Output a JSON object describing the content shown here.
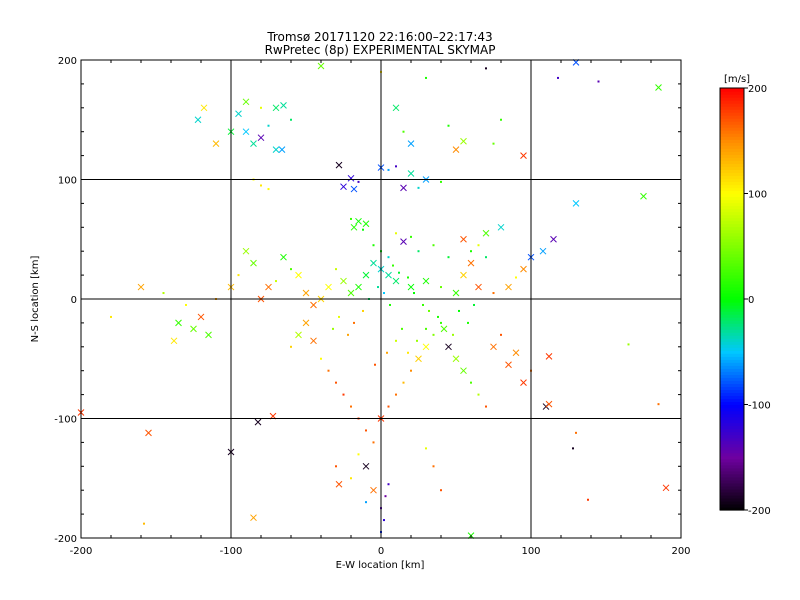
{
  "chart_data": {
    "type": "scatter",
    "title": "Tromsø 20171120 22:16:00–22:17:43",
    "subtitle": "RwPretec (8p) EXPERIMENTAL SKYMAP",
    "xlabel": "E-W location [km]",
    "ylabel": "N-S location [km]",
    "xlim": [
      -200,
      200
    ],
    "ylim": [
      -200,
      200
    ],
    "x_ticks": [
      "-200",
      "-100",
      "0",
      "100",
      "200"
    ],
    "y_ticks": [
      "-200",
      "-100",
      "0",
      "100",
      "200"
    ],
    "grid": true,
    "colorbar": {
      "label": "[m/s]",
      "range": [
        -200,
        200
      ],
      "ticks": [
        "-200",
        "-100",
        "0",
        "100",
        "200"
      ],
      "placement": "right"
    },
    "markers": [
      "dot",
      "x"
    ],
    "points": [
      {
        "x": -10,
        "y": 63,
        "v": 10,
        "m": "x"
      },
      {
        "x": -15,
        "y": 65,
        "v": 5,
        "m": "x"
      },
      {
        "x": -18,
        "y": 60,
        "v": 15,
        "m": "x"
      },
      {
        "x": -12,
        "y": 58,
        "v": 0,
        "m": "dot"
      },
      {
        "x": -20,
        "y": 67,
        "v": 20,
        "m": "dot"
      },
      {
        "x": -95,
        "y": 155,
        "v": -40,
        "m": "x"
      },
      {
        "x": -90,
        "y": 140,
        "v": -50,
        "m": "x"
      },
      {
        "x": -85,
        "y": 130,
        "v": -30,
        "m": "x"
      },
      {
        "x": -80,
        "y": 135,
        "v": -140,
        "m": "x"
      },
      {
        "x": -75,
        "y": 145,
        "v": -40,
        "m": "dot"
      },
      {
        "x": -70,
        "y": 160,
        "v": -20,
        "m": "x"
      },
      {
        "x": -65,
        "y": 162,
        "v": -30,
        "m": "x"
      },
      {
        "x": -60,
        "y": 150,
        "v": -20,
        "m": "dot"
      },
      {
        "x": -100,
        "y": 140,
        "v": -10,
        "m": "x"
      },
      {
        "x": -110,
        "y": 130,
        "v": 130,
        "m": "x"
      },
      {
        "x": -122,
        "y": 150,
        "v": -40,
        "m": "x"
      },
      {
        "x": -118,
        "y": 160,
        "v": 110,
        "m": "x"
      },
      {
        "x": -90,
        "y": 165,
        "v": 40,
        "m": "x"
      },
      {
        "x": -80,
        "y": 160,
        "v": 90,
        "m": "dot"
      },
      {
        "x": -85,
        "y": 100,
        "v": 100,
        "m": "dot"
      },
      {
        "x": -80,
        "y": 95,
        "v": 110,
        "m": "dot"
      },
      {
        "x": -75,
        "y": 92,
        "v": 100,
        "m": "dot"
      },
      {
        "x": -70,
        "y": 125,
        "v": -40,
        "m": "x"
      },
      {
        "x": -66,
        "y": 125,
        "v": -60,
        "m": "x"
      },
      {
        "x": -28,
        "y": 112,
        "v": -190,
        "m": "x"
      },
      {
        "x": -25,
        "y": 94,
        "v": -120,
        "m": "x"
      },
      {
        "x": -20,
        "y": 101,
        "v": -120,
        "m": "x"
      },
      {
        "x": -15,
        "y": 98,
        "v": -130,
        "m": "dot"
      },
      {
        "x": -18,
        "y": 92,
        "v": -80,
        "m": "x"
      },
      {
        "x": 0,
        "y": 110,
        "v": -80,
        "m": "x"
      },
      {
        "x": 5,
        "y": 108,
        "v": -60,
        "m": "dot"
      },
      {
        "x": 10,
        "y": 111,
        "v": -130,
        "m": "dot"
      },
      {
        "x": 15,
        "y": 93,
        "v": -140,
        "m": "x"
      },
      {
        "x": 20,
        "y": 105,
        "v": -30,
        "m": "x"
      },
      {
        "x": 30,
        "y": 100,
        "v": -60,
        "m": "x"
      },
      {
        "x": 25,
        "y": 93,
        "v": -40,
        "m": "dot"
      },
      {
        "x": 40,
        "y": 98,
        "v": 20,
        "m": "dot"
      },
      {
        "x": 20,
        "y": 130,
        "v": -60,
        "m": "x"
      },
      {
        "x": 10,
        "y": 160,
        "v": -20,
        "m": "x"
      },
      {
        "x": 15,
        "y": 140,
        "v": 30,
        "m": "dot"
      },
      {
        "x": 0,
        "y": 190,
        "v": 110,
        "m": "dot"
      },
      {
        "x": -40,
        "y": 195,
        "v": 40,
        "m": "x"
      },
      {
        "x": 50,
        "y": 125,
        "v": 150,
        "m": "x"
      },
      {
        "x": 55,
        "y": 132,
        "v": 60,
        "m": "x"
      },
      {
        "x": 30,
        "y": 185,
        "v": 10,
        "m": "dot"
      },
      {
        "x": 45,
        "y": 145,
        "v": 10,
        "m": "dot"
      },
      {
        "x": 75,
        "y": 130,
        "v": 40,
        "m": "dot"
      },
      {
        "x": 80,
        "y": 150,
        "v": 20,
        "m": "dot"
      },
      {
        "x": 95,
        "y": 120,
        "v": 180,
        "m": "x"
      },
      {
        "x": 70,
        "y": 193,
        "v": -190,
        "m": "dot"
      },
      {
        "x": 118,
        "y": 185,
        "v": -130,
        "m": "dot"
      },
      {
        "x": 130,
        "y": 198,
        "v": -80,
        "m": "x"
      },
      {
        "x": 145,
        "y": 182,
        "v": -140,
        "m": "dot"
      },
      {
        "x": 185,
        "y": 177,
        "v": 20,
        "m": "x"
      },
      {
        "x": 175,
        "y": 86,
        "v": 20,
        "m": "x"
      },
      {
        "x": 130,
        "y": 80,
        "v": -50,
        "m": "x"
      },
      {
        "x": 115,
        "y": 50,
        "v": -140,
        "m": "x"
      },
      {
        "x": 108,
        "y": 40,
        "v": -60,
        "m": "x"
      },
      {
        "x": 100,
        "y": 35,
        "v": -80,
        "m": "x"
      },
      {
        "x": 95,
        "y": 25,
        "v": 150,
        "m": "x"
      },
      {
        "x": 90,
        "y": 18,
        "v": 100,
        "m": "dot"
      },
      {
        "x": 80,
        "y": 60,
        "v": -40,
        "m": "x"
      },
      {
        "x": 70,
        "y": 55,
        "v": 30,
        "m": "x"
      },
      {
        "x": 60,
        "y": 30,
        "v": 160,
        "m": "x"
      },
      {
        "x": 55,
        "y": 20,
        "v": 120,
        "m": "x"
      },
      {
        "x": 65,
        "y": 10,
        "v": 170,
        "m": "x"
      },
      {
        "x": 75,
        "y": 5,
        "v": 160,
        "m": "dot"
      },
      {
        "x": 85,
        "y": 10,
        "v": 140,
        "m": "x"
      },
      {
        "x": 50,
        "y": 5,
        "v": 20,
        "m": "x"
      },
      {
        "x": 40,
        "y": 10,
        "v": 40,
        "m": "dot"
      },
      {
        "x": 30,
        "y": 15,
        "v": 10,
        "m": "x"
      },
      {
        "x": 20,
        "y": 10,
        "v": 0,
        "m": "x"
      },
      {
        "x": 10,
        "y": 15,
        "v": -20,
        "m": "x"
      },
      {
        "x": 5,
        "y": 20,
        "v": -30,
        "m": "x"
      },
      {
        "x": 0,
        "y": 25,
        "v": -40,
        "m": "x"
      },
      {
        "x": -5,
        "y": 30,
        "v": -30,
        "m": "x"
      },
      {
        "x": -10,
        "y": 20,
        "v": -10,
        "m": "x"
      },
      {
        "x": -15,
        "y": 10,
        "v": 10,
        "m": "x"
      },
      {
        "x": -20,
        "y": 5,
        "v": 30,
        "m": "x"
      },
      {
        "x": -25,
        "y": 15,
        "v": 60,
        "m": "x"
      },
      {
        "x": -30,
        "y": 25,
        "v": 80,
        "m": "dot"
      },
      {
        "x": -35,
        "y": 10,
        "v": 100,
        "m": "x"
      },
      {
        "x": -40,
        "y": 0,
        "v": 120,
        "m": "x"
      },
      {
        "x": -45,
        "y": -5,
        "v": 160,
        "m": "x"
      },
      {
        "x": -50,
        "y": 5,
        "v": 140,
        "m": "x"
      },
      {
        "x": -55,
        "y": 20,
        "v": 100,
        "m": "x"
      },
      {
        "x": -60,
        "y": 25,
        "v": 30,
        "m": "dot"
      },
      {
        "x": -65,
        "y": 35,
        "v": 10,
        "m": "x"
      },
      {
        "x": -70,
        "y": 15,
        "v": 80,
        "m": "dot"
      },
      {
        "x": -75,
        "y": 10,
        "v": 160,
        "m": "x"
      },
      {
        "x": -80,
        "y": 0,
        "v": 170,
        "m": "x"
      },
      {
        "x": -85,
        "y": 30,
        "v": 40,
        "m": "x"
      },
      {
        "x": -90,
        "y": 40,
        "v": 60,
        "m": "x"
      },
      {
        "x": -95,
        "y": 20,
        "v": 110,
        "m": "dot"
      },
      {
        "x": -100,
        "y": 10,
        "v": 130,
        "m": "x"
      },
      {
        "x": -110,
        "y": 0,
        "v": 140,
        "m": "dot"
      },
      {
        "x": -120,
        "y": -15,
        "v": 170,
        "m": "x"
      },
      {
        "x": -115,
        "y": -30,
        "v": 30,
        "m": "x"
      },
      {
        "x": -125,
        "y": -25,
        "v": 40,
        "m": "x"
      },
      {
        "x": -135,
        "y": -20,
        "v": 20,
        "m": "x"
      },
      {
        "x": -138,
        "y": -35,
        "v": 110,
        "m": "x"
      },
      {
        "x": -130,
        "y": -5,
        "v": 100,
        "m": "dot"
      },
      {
        "x": -160,
        "y": 10,
        "v": 140,
        "m": "x"
      },
      {
        "x": -180,
        "y": -15,
        "v": 110,
        "m": "dot"
      },
      {
        "x": -145,
        "y": 5,
        "v": 70,
        "m": "dot"
      },
      {
        "x": -200,
        "y": -95,
        "v": 180,
        "m": "x"
      },
      {
        "x": -155,
        "y": -112,
        "v": 170,
        "m": "x"
      },
      {
        "x": -100,
        "y": -128,
        "v": -190,
        "m": "x"
      },
      {
        "x": -82,
        "y": -103,
        "v": -190,
        "m": "x"
      },
      {
        "x": -72,
        "y": -98,
        "v": 180,
        "m": "x"
      },
      {
        "x": -60,
        "y": -40,
        "v": 120,
        "m": "dot"
      },
      {
        "x": -55,
        "y": -30,
        "v": 70,
        "m": "x"
      },
      {
        "x": -50,
        "y": -20,
        "v": 140,
        "m": "x"
      },
      {
        "x": -45,
        "y": -35,
        "v": 160,
        "m": "x"
      },
      {
        "x": -40,
        "y": -50,
        "v": 100,
        "m": "dot"
      },
      {
        "x": -35,
        "y": -60,
        "v": 160,
        "m": "dot"
      },
      {
        "x": -30,
        "y": -70,
        "v": 170,
        "m": "dot"
      },
      {
        "x": -25,
        "y": -80,
        "v": 180,
        "m": "dot"
      },
      {
        "x": -20,
        "y": -90,
        "v": 160,
        "m": "dot"
      },
      {
        "x": -15,
        "y": -100,
        "v": 180,
        "m": "dot"
      },
      {
        "x": -10,
        "y": -110,
        "v": 170,
        "m": "dot"
      },
      {
        "x": -5,
        "y": -120,
        "v": 160,
        "m": "dot"
      },
      {
        "x": 0,
        "y": -100,
        "v": 180,
        "m": "x"
      },
      {
        "x": 5,
        "y": -90,
        "v": 170,
        "m": "dot"
      },
      {
        "x": 10,
        "y": -80,
        "v": 160,
        "m": "dot"
      },
      {
        "x": 15,
        "y": -70,
        "v": 130,
        "m": "dot"
      },
      {
        "x": 20,
        "y": -60,
        "v": 150,
        "m": "dot"
      },
      {
        "x": 25,
        "y": -50,
        "v": 120,
        "m": "x"
      },
      {
        "x": 30,
        "y": -40,
        "v": 100,
        "m": "x"
      },
      {
        "x": 35,
        "y": -30,
        "v": 50,
        "m": "dot"
      },
      {
        "x": 40,
        "y": -20,
        "v": 20,
        "m": "dot"
      },
      {
        "x": 45,
        "y": -40,
        "v": -190,
        "m": "x"
      },
      {
        "x": 50,
        "y": -50,
        "v": 60,
        "m": "x"
      },
      {
        "x": 55,
        "y": -60,
        "v": 40,
        "m": "x"
      },
      {
        "x": 60,
        "y": -70,
        "v": 30,
        "m": "dot"
      },
      {
        "x": 65,
        "y": -80,
        "v": 70,
        "m": "dot"
      },
      {
        "x": 70,
        "y": -90,
        "v": 170,
        "m": "dot"
      },
      {
        "x": 75,
        "y": -40,
        "v": 160,
        "m": "x"
      },
      {
        "x": 80,
        "y": -30,
        "v": 170,
        "m": "dot"
      },
      {
        "x": 85,
        "y": -55,
        "v": 170,
        "m": "x"
      },
      {
        "x": 90,
        "y": -45,
        "v": 150,
        "m": "x"
      },
      {
        "x": 95,
        "y": -70,
        "v": 180,
        "m": "x"
      },
      {
        "x": 100,
        "y": -60,
        "v": 160,
        "m": "dot"
      },
      {
        "x": 110,
        "y": -90,
        "v": -190,
        "m": "x"
      },
      {
        "x": 112,
        "y": -88,
        "v": 170,
        "m": "x"
      },
      {
        "x": 112,
        "y": -48,
        "v": 180,
        "m": "x"
      },
      {
        "x": 130,
        "y": -112,
        "v": 160,
        "m": "dot"
      },
      {
        "x": 128,
        "y": -125,
        "v": -190,
        "m": "dot"
      },
      {
        "x": 165,
        "y": -38,
        "v": 60,
        "m": "dot"
      },
      {
        "x": 185,
        "y": -88,
        "v": 160,
        "m": "dot"
      },
      {
        "x": 190,
        "y": -158,
        "v": 180,
        "m": "x"
      },
      {
        "x": 138,
        "y": -168,
        "v": 180,
        "m": "dot"
      },
      {
        "x": 60,
        "y": -198,
        "v": 10,
        "m": "x"
      },
      {
        "x": 5,
        "y": -155,
        "v": -130,
        "m": "dot"
      },
      {
        "x": 3,
        "y": -165,
        "v": -150,
        "m": "dot"
      },
      {
        "x": 0,
        "y": -175,
        "v": -140,
        "m": "dot"
      },
      {
        "x": 2,
        "y": -185,
        "v": -120,
        "m": "dot"
      },
      {
        "x": 0,
        "y": -195,
        "v": -90,
        "m": "dot"
      },
      {
        "x": -5,
        "y": -160,
        "v": 160,
        "m": "x"
      },
      {
        "x": -10,
        "y": -170,
        "v": -60,
        "m": "dot"
      },
      {
        "x": -20,
        "y": -150,
        "v": 110,
        "m": "dot"
      },
      {
        "x": -30,
        "y": -140,
        "v": 170,
        "m": "dot"
      },
      {
        "x": -15,
        "y": -130,
        "v": 100,
        "m": "dot"
      },
      {
        "x": -10,
        "y": -140,
        "v": -190,
        "m": "x"
      },
      {
        "x": -28,
        "y": -155,
        "v": 170,
        "m": "x"
      },
      {
        "x": -85,
        "y": -183,
        "v": 140,
        "m": "x"
      },
      {
        "x": -158,
        "y": -188,
        "v": 130,
        "m": "dot"
      },
      {
        "x": 30,
        "y": -125,
        "v": 90,
        "m": "dot"
      },
      {
        "x": 35,
        "y": -140,
        "v": 160,
        "m": "dot"
      },
      {
        "x": 40,
        "y": -160,
        "v": 170,
        "m": "dot"
      },
      {
        "x": 10,
        "y": 55,
        "v": 90,
        "m": "dot"
      },
      {
        "x": 15,
        "y": 48,
        "v": -140,
        "m": "x"
      },
      {
        "x": 20,
        "y": 52,
        "v": 20,
        "m": "dot"
      },
      {
        "x": 25,
        "y": 40,
        "v": -20,
        "m": "dot"
      },
      {
        "x": 35,
        "y": 45,
        "v": 30,
        "m": "dot"
      },
      {
        "x": 45,
        "y": 35,
        "v": -10,
        "m": "dot"
      },
      {
        "x": 55,
        "y": 50,
        "v": 170,
        "m": "x"
      },
      {
        "x": 60,
        "y": 40,
        "v": 10,
        "m": "dot"
      },
      {
        "x": 65,
        "y": 45,
        "v": 90,
        "m": "dot"
      },
      {
        "x": 70,
        "y": 35,
        "v": -20,
        "m": "dot"
      },
      {
        "x": 0,
        "y": 40,
        "v": 0,
        "m": "dot"
      },
      {
        "x": -5,
        "y": 45,
        "v": 10,
        "m": "dot"
      },
      {
        "x": 5,
        "y": 35,
        "v": -40,
        "m": "dot"
      },
      {
        "x": 8,
        "y": 28,
        "v": 20,
        "m": "dot"
      },
      {
        "x": 12,
        "y": 22,
        "v": -10,
        "m": "dot"
      },
      {
        "x": 18,
        "y": 18,
        "v": 10,
        "m": "dot"
      },
      {
        "x": 22,
        "y": 5,
        "v": 0,
        "m": "dot"
      },
      {
        "x": 28,
        "y": -5,
        "v": 20,
        "m": "dot"
      },
      {
        "x": 32,
        "y": -10,
        "v": 40,
        "m": "dot"
      },
      {
        "x": 38,
        "y": -15,
        "v": 10,
        "m": "dot"
      },
      {
        "x": 42,
        "y": -25,
        "v": 30,
        "m": "x"
      },
      {
        "x": 48,
        "y": -30,
        "v": 60,
        "m": "dot"
      },
      {
        "x": 52,
        "y": -10,
        "v": 0,
        "m": "dot"
      },
      {
        "x": 58,
        "y": -20,
        "v": 10,
        "m": "dot"
      },
      {
        "x": 62,
        "y": -5,
        "v": -10,
        "m": "dot"
      },
      {
        "x": -2,
        "y": 10,
        "v": -30,
        "m": "dot"
      },
      {
        "x": 2,
        "y": 5,
        "v": -50,
        "m": "dot"
      },
      {
        "x": -8,
        "y": 0,
        "v": -20,
        "m": "dot"
      },
      {
        "x": 6,
        "y": -5,
        "v": 10,
        "m": "dot"
      },
      {
        "x": -12,
        "y": -10,
        "v": 120,
        "m": "dot"
      },
      {
        "x": -18,
        "y": -20,
        "v": 160,
        "m": "dot"
      },
      {
        "x": -22,
        "y": -30,
        "v": 140,
        "m": "dot"
      },
      {
        "x": -28,
        "y": -15,
        "v": 90,
        "m": "dot"
      },
      {
        "x": -32,
        "y": -25,
        "v": 60,
        "m": "dot"
      },
      {
        "x": 14,
        "y": -25,
        "v": 30,
        "m": "dot"
      },
      {
        "x": 10,
        "y": -35,
        "v": 80,
        "m": "dot"
      },
      {
        "x": 4,
        "y": -45,
        "v": 140,
        "m": "dot"
      },
      {
        "x": -4,
        "y": -55,
        "v": 170,
        "m": "dot"
      },
      {
        "x": 18,
        "y": -45,
        "v": 110,
        "m": "dot"
      },
      {
        "x": 24,
        "y": -35,
        "v": 60,
        "m": "dot"
      },
      {
        "x": 30,
        "y": -25,
        "v": 30,
        "m": "dot"
      }
    ]
  }
}
